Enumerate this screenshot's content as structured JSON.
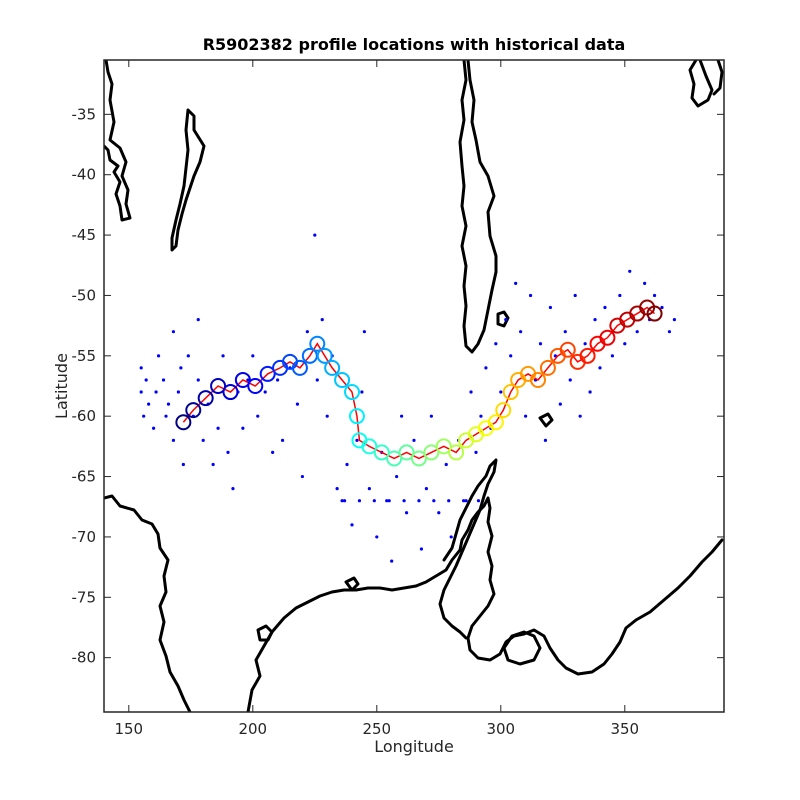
{
  "chart_data": {
    "type": "scatter",
    "title": "R5902382 profile locations with historical data",
    "xlabel": "Longitude",
    "ylabel": "Latitude",
    "xlim": [
      140,
      390
    ],
    "ylim": [
      -84.5,
      -30.5
    ],
    "xticks": [
      150,
      200,
      250,
      300,
      350
    ],
    "yticks": [
      -35,
      -40,
      -45,
      -50,
      -55,
      -60,
      -65,
      -70,
      -75,
      -80
    ],
    "grid": false,
    "colors": {
      "historical": "#0000ff",
      "track_line": "#ff0000",
      "coastline": "#000000",
      "colormap": "jet"
    },
    "series": [
      {
        "points": [
          [
            155,
            -56
          ],
          [
            155,
            -58
          ],
          [
            156,
            -60
          ],
          [
            157,
            -57
          ],
          [
            158,
            -59
          ],
          [
            160,
            -61
          ],
          [
            161,
            -58
          ],
          [
            162,
            -55
          ],
          [
            164,
            -57
          ],
          [
            165,
            -60
          ],
          [
            166,
            -59
          ],
          [
            168,
            -53
          ],
          [
            168,
            -62
          ],
          [
            170,
            -58
          ],
          [
            171,
            -56
          ],
          [
            172,
            -64
          ],
          [
            174,
            -55
          ],
          [
            176,
            -60
          ],
          [
            178,
            -52
          ],
          [
            178,
            -57
          ],
          [
            180,
            -62
          ],
          [
            182,
            -59
          ],
          [
            184,
            -64
          ],
          [
            186,
            -61
          ],
          [
            188,
            -55
          ],
          [
            190,
            -63
          ],
          [
            192,
            -66
          ],
          [
            194,
            -58
          ],
          [
            196,
            -61
          ],
          [
            198,
            -57
          ],
          [
            200,
            -55
          ],
          [
            202,
            -60
          ],
          [
            205,
            -58
          ],
          [
            208,
            -63
          ],
          [
            210,
            -57
          ],
          [
            212,
            -62
          ],
          [
            215,
            -56
          ],
          [
            218,
            -59
          ],
          [
            220,
            -65
          ],
          [
            222,
            -53
          ],
          [
            225,
            -45
          ],
          [
            226,
            -57
          ],
          [
            228,
            -52
          ],
          [
            230,
            -60
          ],
          [
            232,
            -55
          ],
          [
            234,
            -66
          ],
          [
            236,
            -67
          ],
          [
            238,
            -64
          ],
          [
            240,
            -69
          ],
          [
            242,
            -62
          ],
          [
            244,
            -58
          ],
          [
            245,
            -53
          ],
          [
            247,
            -66
          ],
          [
            250,
            -70
          ],
          [
            252,
            -63
          ],
          [
            254,
            -67
          ],
          [
            256,
            -72
          ],
          [
            258,
            -65
          ],
          [
            260,
            -60
          ],
          [
            262,
            -68
          ],
          [
            265,
            -62
          ],
          [
            268,
            -71
          ],
          [
            270,
            -66
          ],
          [
            272,
            -60
          ],
          [
            275,
            -68
          ],
          [
            278,
            -64
          ],
          [
            280,
            -70
          ],
          [
            283,
            -62
          ],
          [
            286,
            -67
          ],
          [
            288,
            -58
          ],
          [
            290,
            -63
          ],
          [
            292,
            -60
          ],
          [
            294,
            -56
          ],
          [
            296,
            -61
          ],
          [
            298,
            -54
          ],
          [
            300,
            -58
          ],
          [
            302,
            -52
          ],
          [
            304,
            -55
          ],
          [
            306,
            -49
          ],
          [
            308,
            -53
          ],
          [
            310,
            -60
          ],
          [
            312,
            -50
          ],
          [
            314,
            -57
          ],
          [
            316,
            -54
          ],
          [
            318,
            -62
          ],
          [
            320,
            -51
          ],
          [
            322,
            -55
          ],
          [
            324,
            -59
          ],
          [
            326,
            -53
          ],
          [
            328,
            -57
          ],
          [
            330,
            -50
          ],
          [
            332,
            -60
          ],
          [
            334,
            -54
          ],
          [
            336,
            -58
          ],
          [
            338,
            -52
          ],
          [
            340,
            -56
          ],
          [
            342,
            -51
          ],
          [
            345,
            -55
          ],
          [
            348,
            -50
          ],
          [
            350,
            -54
          ],
          [
            352,
            -48
          ],
          [
            355,
            -53
          ],
          [
            358,
            -49
          ],
          [
            360,
            -52
          ],
          [
            362,
            -50
          ],
          [
            365,
            -51
          ],
          [
            368,
            -53
          ],
          [
            370,
            -52
          ],
          [
            237,
            -67
          ],
          [
            243,
            -67
          ],
          [
            249,
            -67
          ],
          [
            255,
            -67
          ],
          [
            261,
            -67
          ],
          [
            267,
            -67
          ],
          [
            273,
            -67
          ],
          [
            279,
            -67
          ],
          [
            285,
            -67
          ],
          [
            291,
            -67
          ]
        ]
      }
    ],
    "track": [
      {
        "lon": 172,
        "lat": -60.5
      },
      {
        "lon": 176,
        "lat": -59.5
      },
      {
        "lon": 181,
        "lat": -58.5
      },
      {
        "lon": 186,
        "lat": -57.5
      },
      {
        "lon": 191,
        "lat": -58
      },
      {
        "lon": 196,
        "lat": -57
      },
      {
        "lon": 201,
        "lat": -57.5
      },
      {
        "lon": 206,
        "lat": -56.5
      },
      {
        "lon": 211,
        "lat": -56
      },
      {
        "lon": 215,
        "lat": -55.5
      },
      {
        "lon": 219,
        "lat": -56
      },
      {
        "lon": 223,
        "lat": -55
      },
      {
        "lon": 226,
        "lat": -54
      },
      {
        "lon": 229,
        "lat": -55
      },
      {
        "lon": 232,
        "lat": -56
      },
      {
        "lon": 236,
        "lat": -57
      },
      {
        "lon": 240,
        "lat": -58
      },
      {
        "lon": 242,
        "lat": -60
      },
      {
        "lon": 243,
        "lat": -62
      },
      {
        "lon": 247,
        "lat": -62.5
      },
      {
        "lon": 252,
        "lat": -63
      },
      {
        "lon": 257,
        "lat": -63.5
      },
      {
        "lon": 262,
        "lat": -63
      },
      {
        "lon": 267,
        "lat": -63.5
      },
      {
        "lon": 272,
        "lat": -63
      },
      {
        "lon": 277,
        "lat": -62.5
      },
      {
        "lon": 282,
        "lat": -63
      },
      {
        "lon": 286,
        "lat": -62
      },
      {
        "lon": 290,
        "lat": -61.5
      },
      {
        "lon": 294,
        "lat": -61
      },
      {
        "lon": 298,
        "lat": -60.5
      },
      {
        "lon": 301,
        "lat": -59.5
      },
      {
        "lon": 304,
        "lat": -58
      },
      {
        "lon": 307,
        "lat": -57
      },
      {
        "lon": 311,
        "lat": -56.5
      },
      {
        "lon": 315,
        "lat": -57
      },
      {
        "lon": 319,
        "lat": -56
      },
      {
        "lon": 323,
        "lat": -55
      },
      {
        "lon": 327,
        "lat": -54.5
      },
      {
        "lon": 331,
        "lat": -55.5
      },
      {
        "lon": 335,
        "lat": -55
      },
      {
        "lon": 339,
        "lat": -54
      },
      {
        "lon": 343,
        "lat": -53.5
      },
      {
        "lon": 347,
        "lat": -52.5
      },
      {
        "lon": 351,
        "lat": -52
      },
      {
        "lon": 355,
        "lat": -51.5
      },
      {
        "lon": 359,
        "lat": -51
      },
      {
        "lon": 362,
        "lat": -51.5
      }
    ]
  }
}
